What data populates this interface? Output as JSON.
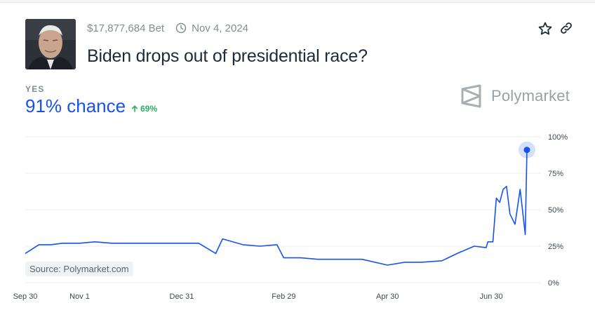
{
  "market": {
    "volume": "$17,877,684 Bet",
    "end_date": "Nov 4, 2024",
    "title": "Biden drops out of presidential race?",
    "outcome": "YES",
    "chance": "91% chance",
    "change": "69%",
    "brand": "Polymarket",
    "source": "Source: Polymarket.com"
  },
  "icons": {
    "clock": "clock-icon",
    "star": "star-icon",
    "link": "link-icon",
    "arrow": "arrow-up-icon",
    "logo": "polymarket-logo-icon"
  },
  "colors": {
    "accent": "#1652f0",
    "positive": "#27ae60",
    "muted": "#858d92",
    "text": "#1d2b39"
  },
  "chart_data": {
    "type": "line",
    "y_ticks": [
      "100%",
      "75%",
      "50%",
      "25%",
      "0%"
    ],
    "x_ticks": [
      "Sep 30",
      "Nov 1",
      "Dec 31",
      "Feb 29",
      "Apr 30",
      "Jun 30"
    ],
    "ylim": [
      0,
      100
    ],
    "grid": true,
    "x": [
      "Sep 30",
      "Oct 8",
      "Oct 15",
      "Oct 22",
      "Nov 1",
      "Nov 10",
      "Nov 20",
      "Dec 1",
      "Dec 15",
      "Dec 31",
      "Jan 10",
      "Jan 20",
      "Jan 24",
      "Feb 5",
      "Feb 15",
      "Feb 25",
      "Feb 29",
      "Mar 10",
      "Mar 20",
      "Apr 1",
      "Apr 15",
      "Apr 30",
      "May 10",
      "May 20",
      "Jun 1",
      "Jun 10",
      "Jun 20",
      "Jun 27",
      "Jun 28",
      "Jul 1",
      "Jul 3",
      "Jul 5",
      "Jul 7",
      "Jul 9",
      "Jul 11",
      "Jul 14",
      "Jul 17",
      "Jul 20",
      "Jul 21"
    ],
    "values": [
      20,
      26,
      26,
      27,
      27,
      28,
      27,
      27,
      27,
      27,
      27,
      20,
      30,
      26,
      25,
      26,
      17,
      17,
      16,
      16,
      16,
      12,
      14,
      14,
      15,
      20,
      25,
      24,
      28,
      28,
      58,
      55,
      64,
      66,
      47,
      40,
      64,
      33,
      91
    ]
  }
}
